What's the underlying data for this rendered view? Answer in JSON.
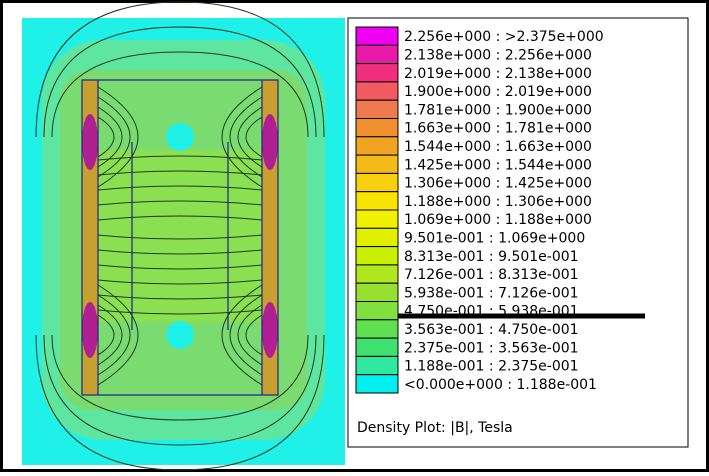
{
  "legend": {
    "entries": [
      {
        "label": "2.256e+000 : >2.375e+000",
        "color": "#f000f0"
      },
      {
        "label": "2.138e+000 : 2.256e+000",
        "color": "#ea1aa8"
      },
      {
        "label": "2.019e+000 : 2.138e+000",
        "color": "#f0307c"
      },
      {
        "label": "1.900e+000 : 2.019e+000",
        "color": "#f05a60"
      },
      {
        "label": "1.781e+000 : 1.900e+000",
        "color": "#f07a50"
      },
      {
        "label": "1.663e+000 : 1.781e+000",
        "color": "#f09030"
      },
      {
        "label": "1.544e+000 : 1.663e+000",
        "color": "#f0a420"
      },
      {
        "label": "1.425e+000 : 1.544e+000",
        "color": "#f4ba18"
      },
      {
        "label": "1.306e+000 : 1.425e+000",
        "color": "#f8d010"
      },
      {
        "label": "1.188e+000 : 1.306e+000",
        "color": "#f8e400"
      },
      {
        "label": "1.069e+000 : 1.188e+000",
        "color": "#f0f000"
      },
      {
        "label": "9.501e-001 : 1.069e+000",
        "color": "#e0f000"
      },
      {
        "label": "8.313e-001 : 9.501e-001",
        "color": "#c8f000"
      },
      {
        "label": "7.126e-001 : 8.313e-001",
        "color": "#b0e820"
      },
      {
        "label": "5.938e-001 : 7.126e-001",
        "color": "#98e030"
      },
      {
        "label": "4.750e-001 : 5.938e-001",
        "color": "#80e040"
      },
      {
        "label": "3.563e-001 : 4.750e-001",
        "color": "#60e050"
      },
      {
        "label": "2.375e-001 : 3.563e-001",
        "color": "#40e070"
      },
      {
        "label": "1.188e-001 : 2.375e-001",
        "color": "#30e8a0"
      },
      {
        "label": "<0.000e+000 : 1.188e-001",
        "color": "#00f0f0"
      }
    ],
    "caption": "Density Plot: |B|, Tesla"
  }
}
